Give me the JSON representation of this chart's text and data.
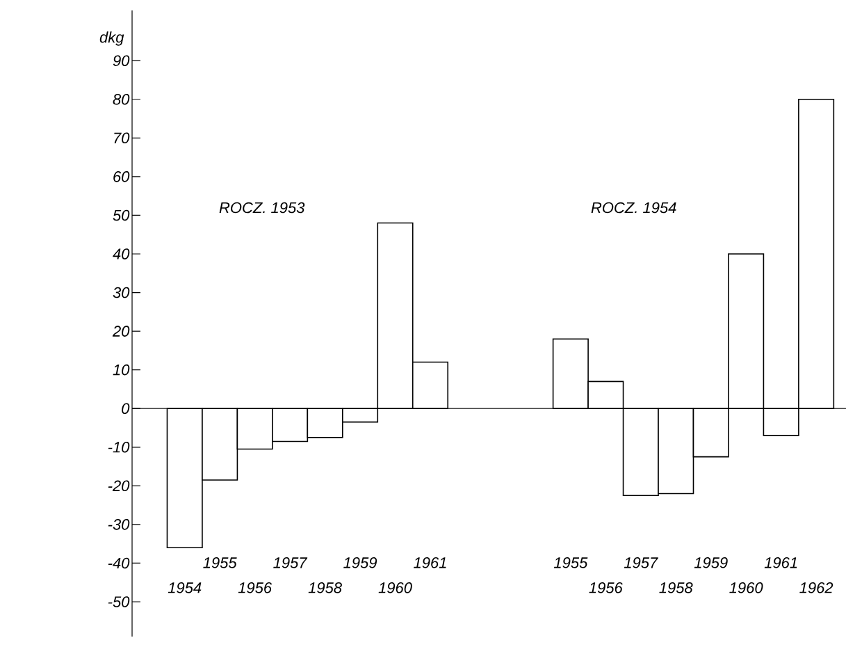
{
  "chart_data": {
    "type": "bar",
    "ylabel": "dkg",
    "categories": [
      "1954",
      "1955",
      "1956",
      "1957",
      "1958",
      "1959",
      "1960",
      "1961",
      null,
      null,
      null,
      "1955",
      "1956",
      "1957",
      "1958",
      "1959",
      "1960",
      "1961",
      "1962"
    ],
    "values": [
      -36,
      -18.5,
      -10.5,
      -8.5,
      -7.5,
      -3.5,
      48,
      12,
      null,
      null,
      null,
      18,
      7,
      -22.5,
      -22,
      -12.5,
      40,
      -7,
      80
    ],
    "color": "#000000",
    "ylim": [
      -59,
      103
    ],
    "yticks": [
      -50,
      -40,
      -30,
      -20,
      -10,
      0,
      10,
      20,
      30,
      40,
      50,
      60,
      70,
      80,
      90
    ],
    "annotations": [
      "ROCZ. 1953",
      "ROCZ. 1954"
    ]
  }
}
